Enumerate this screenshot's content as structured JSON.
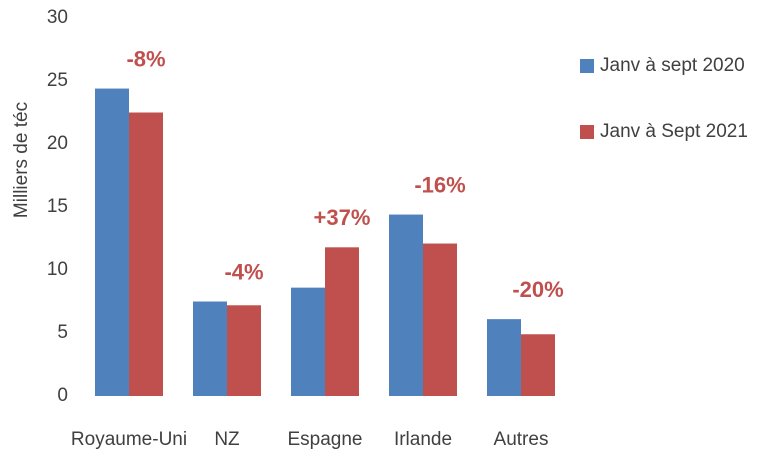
{
  "chart_data": {
    "type": "bar",
    "y_label": "Milliers de téc",
    "categories": [
      "Royaume-Uni",
      "NZ",
      "Espagne",
      "Irlande",
      "Autres"
    ],
    "series": [
      {
        "name": "Janv à sept 2020",
        "color": "#4f81bd",
        "values": [
          24.4,
          7.5,
          8.6,
          14.4,
          6.1
        ]
      },
      {
        "name": "Janv à Sept 2021",
        "color": "#c0504d",
        "values": [
          22.5,
          7.2,
          11.8,
          12.1,
          4.9
        ]
      }
    ],
    "annotations": [
      "-8%",
      "-4%",
      "+37%",
      "-16%",
      "-20%"
    ],
    "annotation_color": "#c0504d",
    "ylim": [
      0,
      30
    ],
    "yticks": [
      0,
      5,
      10,
      15,
      20,
      25,
      30
    ],
    "grid": false,
    "legend": "right"
  }
}
